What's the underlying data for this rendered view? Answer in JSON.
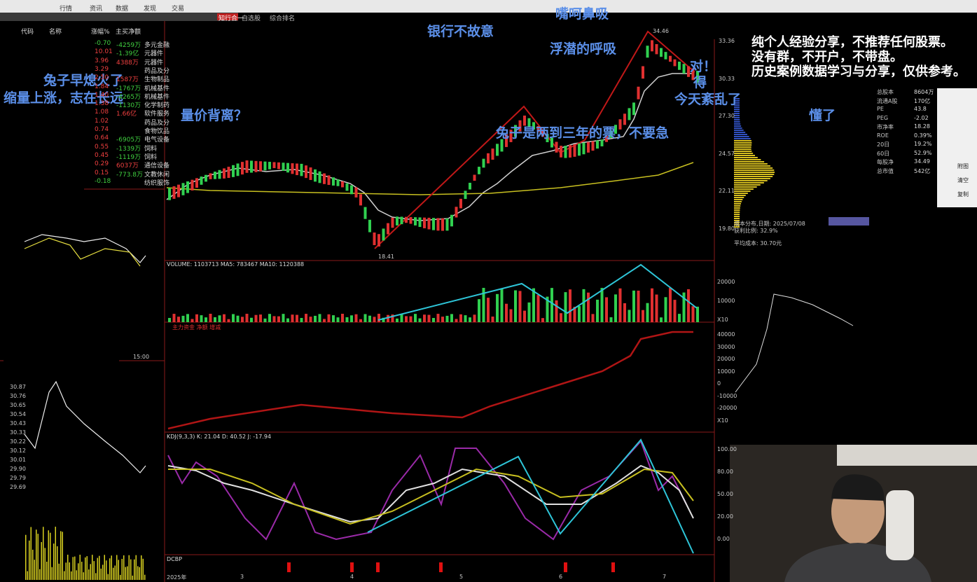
{
  "menu": [
    "行情",
    "资讯",
    "数据",
    "发现",
    "交易",
    "自选股",
    "综合排名",
    "知行合一"
  ],
  "annotations": [
    "银行不故意",
    "嘴呵鼻吸",
    "浮潜的呼吸",
    "对！",
    "得",
    "今天紊乱了",
    "量价背离？",
    "兔子早熄火了",
    "缩量上涨，志在长远",
    "兔子是两到三年的票，不要急",
    "懂了"
  ],
  "disclaimer": [
    "纯个人经验分享，不推荐任何股票。",
    "没有群，不开户，不带盘。",
    "历史案例数据学习与分享，仅供参考。"
  ],
  "watchlist": {
    "header": [
      "代码",
      "名称",
      "涨幅%",
      "主买净额"
    ],
    "rows": [
      [
        "-0.70",
        "-4259万",
        "多元金融"
      ],
      [
        "10.01",
        "-1.39亿",
        "元器件"
      ],
      [
        "3.96",
        "4388万",
        "元器件"
      ],
      [
        "3.29",
        "",
        "药品及分"
      ],
      [
        "2.50",
        "1587万",
        "生物制品"
      ],
      [
        "1.84",
        "-1767万",
        "机械基件"
      ],
      [
        "1.40",
        "-4265万",
        "机械基件"
      ],
      [
        "1.38",
        "-1130万",
        "化学制药"
      ],
      [
        "1.08",
        "1.66亿",
        "软件服务"
      ],
      [
        "1.02",
        "",
        "药品及分"
      ],
      [
        "0.74",
        "",
        "食物饮品"
      ],
      [
        "0.64",
        "-6905万",
        "电气设备"
      ],
      [
        "0.55",
        "-1339万",
        "饲料"
      ],
      [
        "0.45",
        "-1119万",
        "饲料"
      ],
      [
        "0.29",
        "6037万",
        "通信设备"
      ],
      [
        "0.15",
        "-773.8万",
        "文教休闲"
      ],
      [
        "-0.18",
        "",
        "纺织服饰"
      ]
    ]
  },
  "main_chart": {
    "price_axis": [
      "33.36",
      "30.33",
      "27.30",
      "24.57",
      "22.11",
      "19.80"
    ],
    "high_label": "34.46",
    "low_label": "18.41",
    "volume_label": "VOLUME: 1103713  MA5: 783467  MA10: 1120388",
    "volume_axis": [
      "20000",
      "10000",
      "X10"
    ],
    "macd_label": "主力资金 净额 增减",
    "macd_axis": [
      "40000",
      "30000",
      "20000",
      "10000",
      "0",
      "-10000",
      "-20000",
      "X10"
    ],
    "kdj_label": "KDJ(9,3,3)  K: 21.04  D: 40.52  J: -17.94",
    "kdj_axis": [
      "100.00",
      "80.00",
      "50.00",
      "20.00",
      "0.00"
    ],
    "dcbp_label": "DCBP",
    "dates": [
      "2025年",
      "3",
      "4",
      "5",
      "6",
      "7"
    ]
  },
  "right_panel": {
    "fields": [
      [
        "总股本",
        "8604万"
      ],
      [
        "流通A股",
        "170亿"
      ],
      [
        "PE",
        "43.8"
      ],
      [
        "PEG",
        "-2.02"
      ],
      [
        "市净率",
        "18.28"
      ],
      [
        "ROE",
        "0.39%"
      ],
      [
        "20日",
        "19.2%"
      ],
      [
        "60日",
        "52.9%"
      ],
      [
        "每股净",
        "34.49"
      ],
      [
        "总市值",
        "542亿"
      ]
    ],
    "chip_label": "成本分布,日期: 2025/07/08",
    "chip_ratio": "获利比例: 32.9%",
    "chip_avg": "平均成本: 30.70元",
    "buttons": [
      "附图",
      "清空",
      "复制"
    ]
  },
  "intraday": {
    "axis_left": [
      "30.87",
      "30.76",
      "30.65",
      "30.54",
      "30.43",
      "30.33",
      "30.22",
      "30.12",
      "30.01",
      "29.90",
      "29.79",
      "29.69"
    ],
    "time": "15:00"
  }
}
